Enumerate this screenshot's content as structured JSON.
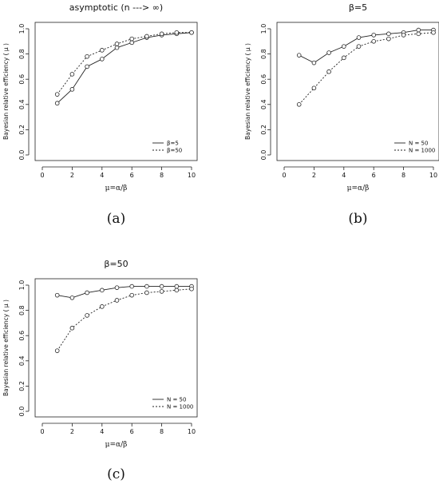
{
  "panel_letters": [
    "(a)",
    "(b)",
    "(c)"
  ],
  "chart_data": [
    {
      "type": "line",
      "panel": "(a)",
      "title": "asymptotic (n ---> ∞)",
      "xlabel": "μ=α/β",
      "ylabel": "Bayesian relative efficiency ( μ )",
      "xlim": [
        0,
        10
      ],
      "ylim": [
        0,
        1
      ],
      "xticks": [
        "0",
        "2",
        "4",
        "6",
        "8",
        "10"
      ],
      "yticks": [
        "0.0",
        "0.2",
        "0.4",
        "0.6",
        "0.8",
        "1.0"
      ],
      "legend_position": "bottom-right",
      "x": [
        1,
        2,
        3,
        4,
        5,
        6,
        7,
        8,
        9,
        10
      ],
      "series": [
        {
          "name": "β=5",
          "style": "solid",
          "values": [
            0.41,
            0.52,
            0.7,
            0.76,
            0.85,
            0.89,
            0.93,
            0.95,
            0.96,
            0.97
          ]
        },
        {
          "name": "β=50",
          "style": "dotted",
          "values": [
            0.48,
            0.64,
            0.78,
            0.83,
            0.88,
            0.92,
            0.94,
            0.96,
            0.97,
            0.97
          ]
        }
      ]
    },
    {
      "type": "line",
      "panel": "(b)",
      "title": "β=5",
      "xlabel": "μ=α/β",
      "ylabel": "Bayesian relative efficiency ( μ )",
      "xlim": [
        0,
        10
      ],
      "ylim": [
        0,
        1
      ],
      "xticks": [
        "0",
        "2",
        "4",
        "6",
        "8",
        "10"
      ],
      "yticks": [
        "0.0",
        "0.2",
        "0.4",
        "0.6",
        "0.8",
        "1.0"
      ],
      "legend_position": "bottom-right",
      "x": [
        1,
        2,
        3,
        4,
        5,
        6,
        7,
        8,
        9,
        10
      ],
      "series": [
        {
          "name": "N = 50",
          "style": "solid",
          "values": [
            0.79,
            0.73,
            0.81,
            0.86,
            0.93,
            0.95,
            0.96,
            0.97,
            0.99,
            0.99
          ]
        },
        {
          "name": "N = 1000",
          "style": "dotted",
          "values": [
            0.4,
            0.53,
            0.66,
            0.77,
            0.86,
            0.9,
            0.92,
            0.95,
            0.96,
            0.97
          ]
        }
      ]
    },
    {
      "type": "line",
      "panel": "(c)",
      "title": "β=50",
      "xlabel": "μ=α/β",
      "ylabel": "Bayesian relative efficiency ( μ )",
      "xlim": [
        0,
        10
      ],
      "ylim": [
        0,
        1
      ],
      "xticks": [
        "0",
        "2",
        "4",
        "6",
        "8",
        "10"
      ],
      "yticks": [
        "0.0",
        "0.2",
        "0.4",
        "0.6",
        "0.8",
        "1.0"
      ],
      "legend_position": "bottom-right",
      "x": [
        1,
        2,
        3,
        4,
        5,
        6,
        7,
        8,
        9,
        10
      ],
      "series": [
        {
          "name": "N = 50",
          "style": "solid",
          "values": [
            0.92,
            0.9,
            0.94,
            0.96,
            0.98,
            0.99,
            0.99,
            0.99,
            0.99,
            0.99
          ]
        },
        {
          "name": "N = 1000",
          "style": "dotted",
          "values": [
            0.48,
            0.66,
            0.76,
            0.83,
            0.88,
            0.92,
            0.94,
            0.95,
            0.96,
            0.97
          ]
        }
      ]
    }
  ]
}
